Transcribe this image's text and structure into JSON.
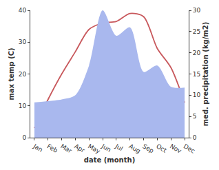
{
  "chart_data": {
    "type": "line",
    "x_label": "date (month)",
    "y_label": "max temp (C)",
    "y2_label": "med. precipitation (kg/m2)",
    "categories": [
      "Jan",
      "Feb",
      "Mar",
      "Apr",
      "May",
      "Jun",
      "Jul",
      "Aug",
      "Sep",
      "Oct",
      "Nov",
      "Dec"
    ],
    "series": [
      {
        "type": "area",
        "axis": "y2",
        "color": "#a9b8ee",
        "values": [
          8.3,
          8.6,
          9,
          10,
          17,
          30,
          24,
          26,
          15.5,
          17,
          12,
          11.8
        ]
      },
      {
        "type": "line",
        "color": "#c8585c",
        "values": [
          3,
          12,
          20,
          27,
          34,
          36,
          36.5,
          39,
          38,
          28,
          22,
          11
        ]
      }
    ],
    "ylim": [
      0,
      40
    ],
    "yticks": [
      0,
      10,
      20,
      30,
      40
    ],
    "y2lim": [
      0,
      30
    ],
    "y2ticks": [
      0,
      5,
      10,
      15,
      20,
      25,
      30
    ],
    "grid": false
  }
}
